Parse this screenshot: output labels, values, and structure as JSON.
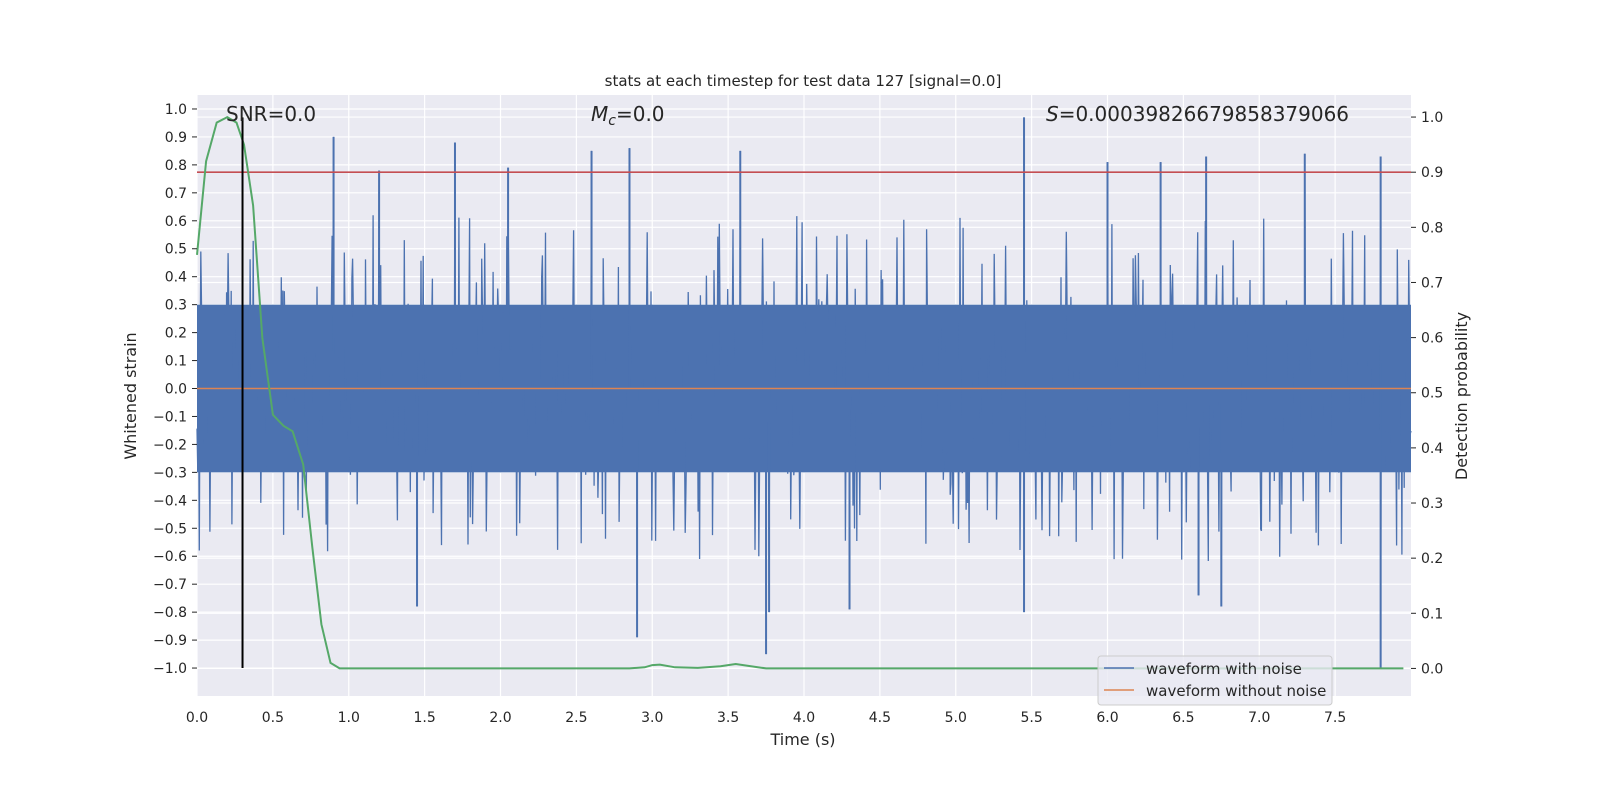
{
  "chart_data": {
    "type": "line",
    "title": "stats at each timestep for test data 127 [signal=0.0]",
    "xlabel": "Time (s)",
    "ylabel": "Whitened strain",
    "y2label": "Detection probability",
    "xlim": [
      0.0,
      8.0
    ],
    "ylim": [
      -1.1,
      1.05
    ],
    "y2lim": [
      -0.05,
      1.04
    ],
    "xticks": [
      "0.0",
      "0.5",
      "1.0",
      "1.5",
      "2.0",
      "2.5",
      "3.0",
      "3.5",
      "4.0",
      "4.5",
      "5.0",
      "5.5",
      "6.0",
      "6.5",
      "7.0",
      "7.5"
    ],
    "yticks": [
      "1.0",
      "0.9",
      "0.8",
      "0.7",
      "0.6",
      "0.5",
      "0.4",
      "0.3",
      "0.2",
      "0.1",
      "0.0",
      "−0.1",
      "−0.2",
      "−0.3",
      "−0.4",
      "−0.5",
      "−0.6",
      "−0.7",
      "−0.8",
      "−0.9",
      "−1.0"
    ],
    "y2ticks": [
      "1.0",
      "0.9",
      "0.8",
      "0.7",
      "0.6",
      "0.5",
      "0.4",
      "0.3",
      "0.2",
      "0.1",
      "0.0"
    ],
    "annotations": {
      "snr_label": "SNR",
      "snr_value": "=0.0",
      "mc_label": "M",
      "mc_sub": "c",
      "mc_value": "=0.0",
      "s_label": "S",
      "s_value": "=0.00039826679858379066"
    },
    "legend": {
      "position": "lower right",
      "entries": [
        "waveform with noise",
        "waveform without noise"
      ]
    },
    "grid": true,
    "colors": {
      "noisy": "#4c72b0",
      "clean": "#dd8452",
      "probability": "#55a868",
      "threshold": "#c44e52",
      "marker": "#000000",
      "axes_bg": "#eaeaf2",
      "grid": "#ffffff"
    },
    "threshold_line_y2": 0.9,
    "marker_line_x": 0.3,
    "noise_envelope": {
      "core_amplitude": 0.3,
      "max_positive_spike": 0.97,
      "min_negative_spike": -1.0
    },
    "series": [
      {
        "name": "waveform with noise",
        "axis": "left",
        "spikes": [
          {
            "x": 0.9,
            "y": 0.9
          },
          {
            "x": 1.2,
            "y": 0.78
          },
          {
            "x": 1.7,
            "y": 0.88
          },
          {
            "x": 2.05,
            "y": 0.79
          },
          {
            "x": 2.6,
            "y": 0.85
          },
          {
            "x": 2.85,
            "y": 0.86
          },
          {
            "x": 3.58,
            "y": 0.85
          },
          {
            "x": 5.45,
            "y": 0.97
          },
          {
            "x": 6.0,
            "y": 0.81
          },
          {
            "x": 6.35,
            "y": 0.81
          },
          {
            "x": 6.65,
            "y": 0.83
          },
          {
            "x": 7.3,
            "y": 0.84
          },
          {
            "x": 7.8,
            "y": 0.83
          },
          {
            "x": 1.45,
            "y": -0.78
          },
          {
            "x": 2.9,
            "y": -0.89
          },
          {
            "x": 3.75,
            "y": -0.95
          },
          {
            "x": 3.77,
            "y": -0.8
          },
          {
            "x": 4.3,
            "y": -0.79
          },
          {
            "x": 5.45,
            "y": -0.8
          },
          {
            "x": 6.6,
            "y": -0.74
          },
          {
            "x": 6.75,
            "y": -0.78
          },
          {
            "x": 7.8,
            "y": -1.0
          }
        ]
      },
      {
        "name": "waveform without noise",
        "axis": "left",
        "x": [
          0.0,
          8.0
        ],
        "y": [
          0.0,
          0.0
        ]
      },
      {
        "axis": "right",
        "x": [
          0.0,
          0.06,
          0.13,
          0.2,
          0.26,
          0.31,
          0.37,
          0.43,
          0.5,
          0.57,
          0.63,
          0.7,
          0.76,
          0.82,
          0.88,
          0.94,
          1.0,
          1.5,
          2.0,
          2.5,
          2.85,
          2.95,
          3.0,
          3.05,
          3.15,
          3.3,
          3.45,
          3.55,
          3.65,
          3.75,
          4.0,
          5.0,
          6.0,
          7.0,
          7.95
        ],
        "y": [
          0.75,
          0.92,
          0.99,
          1.0,
          0.99,
          0.95,
          0.84,
          0.6,
          0.46,
          0.44,
          0.43,
          0.37,
          0.22,
          0.08,
          0.01,
          0.0,
          0.0,
          0.0,
          0.0,
          0.0,
          0.0,
          0.002,
          0.006,
          0.007,
          0.002,
          0.001,
          0.004,
          0.008,
          0.004,
          0.0,
          0.0,
          0.0,
          0.0,
          0.0,
          0.0
        ]
      }
    ]
  }
}
